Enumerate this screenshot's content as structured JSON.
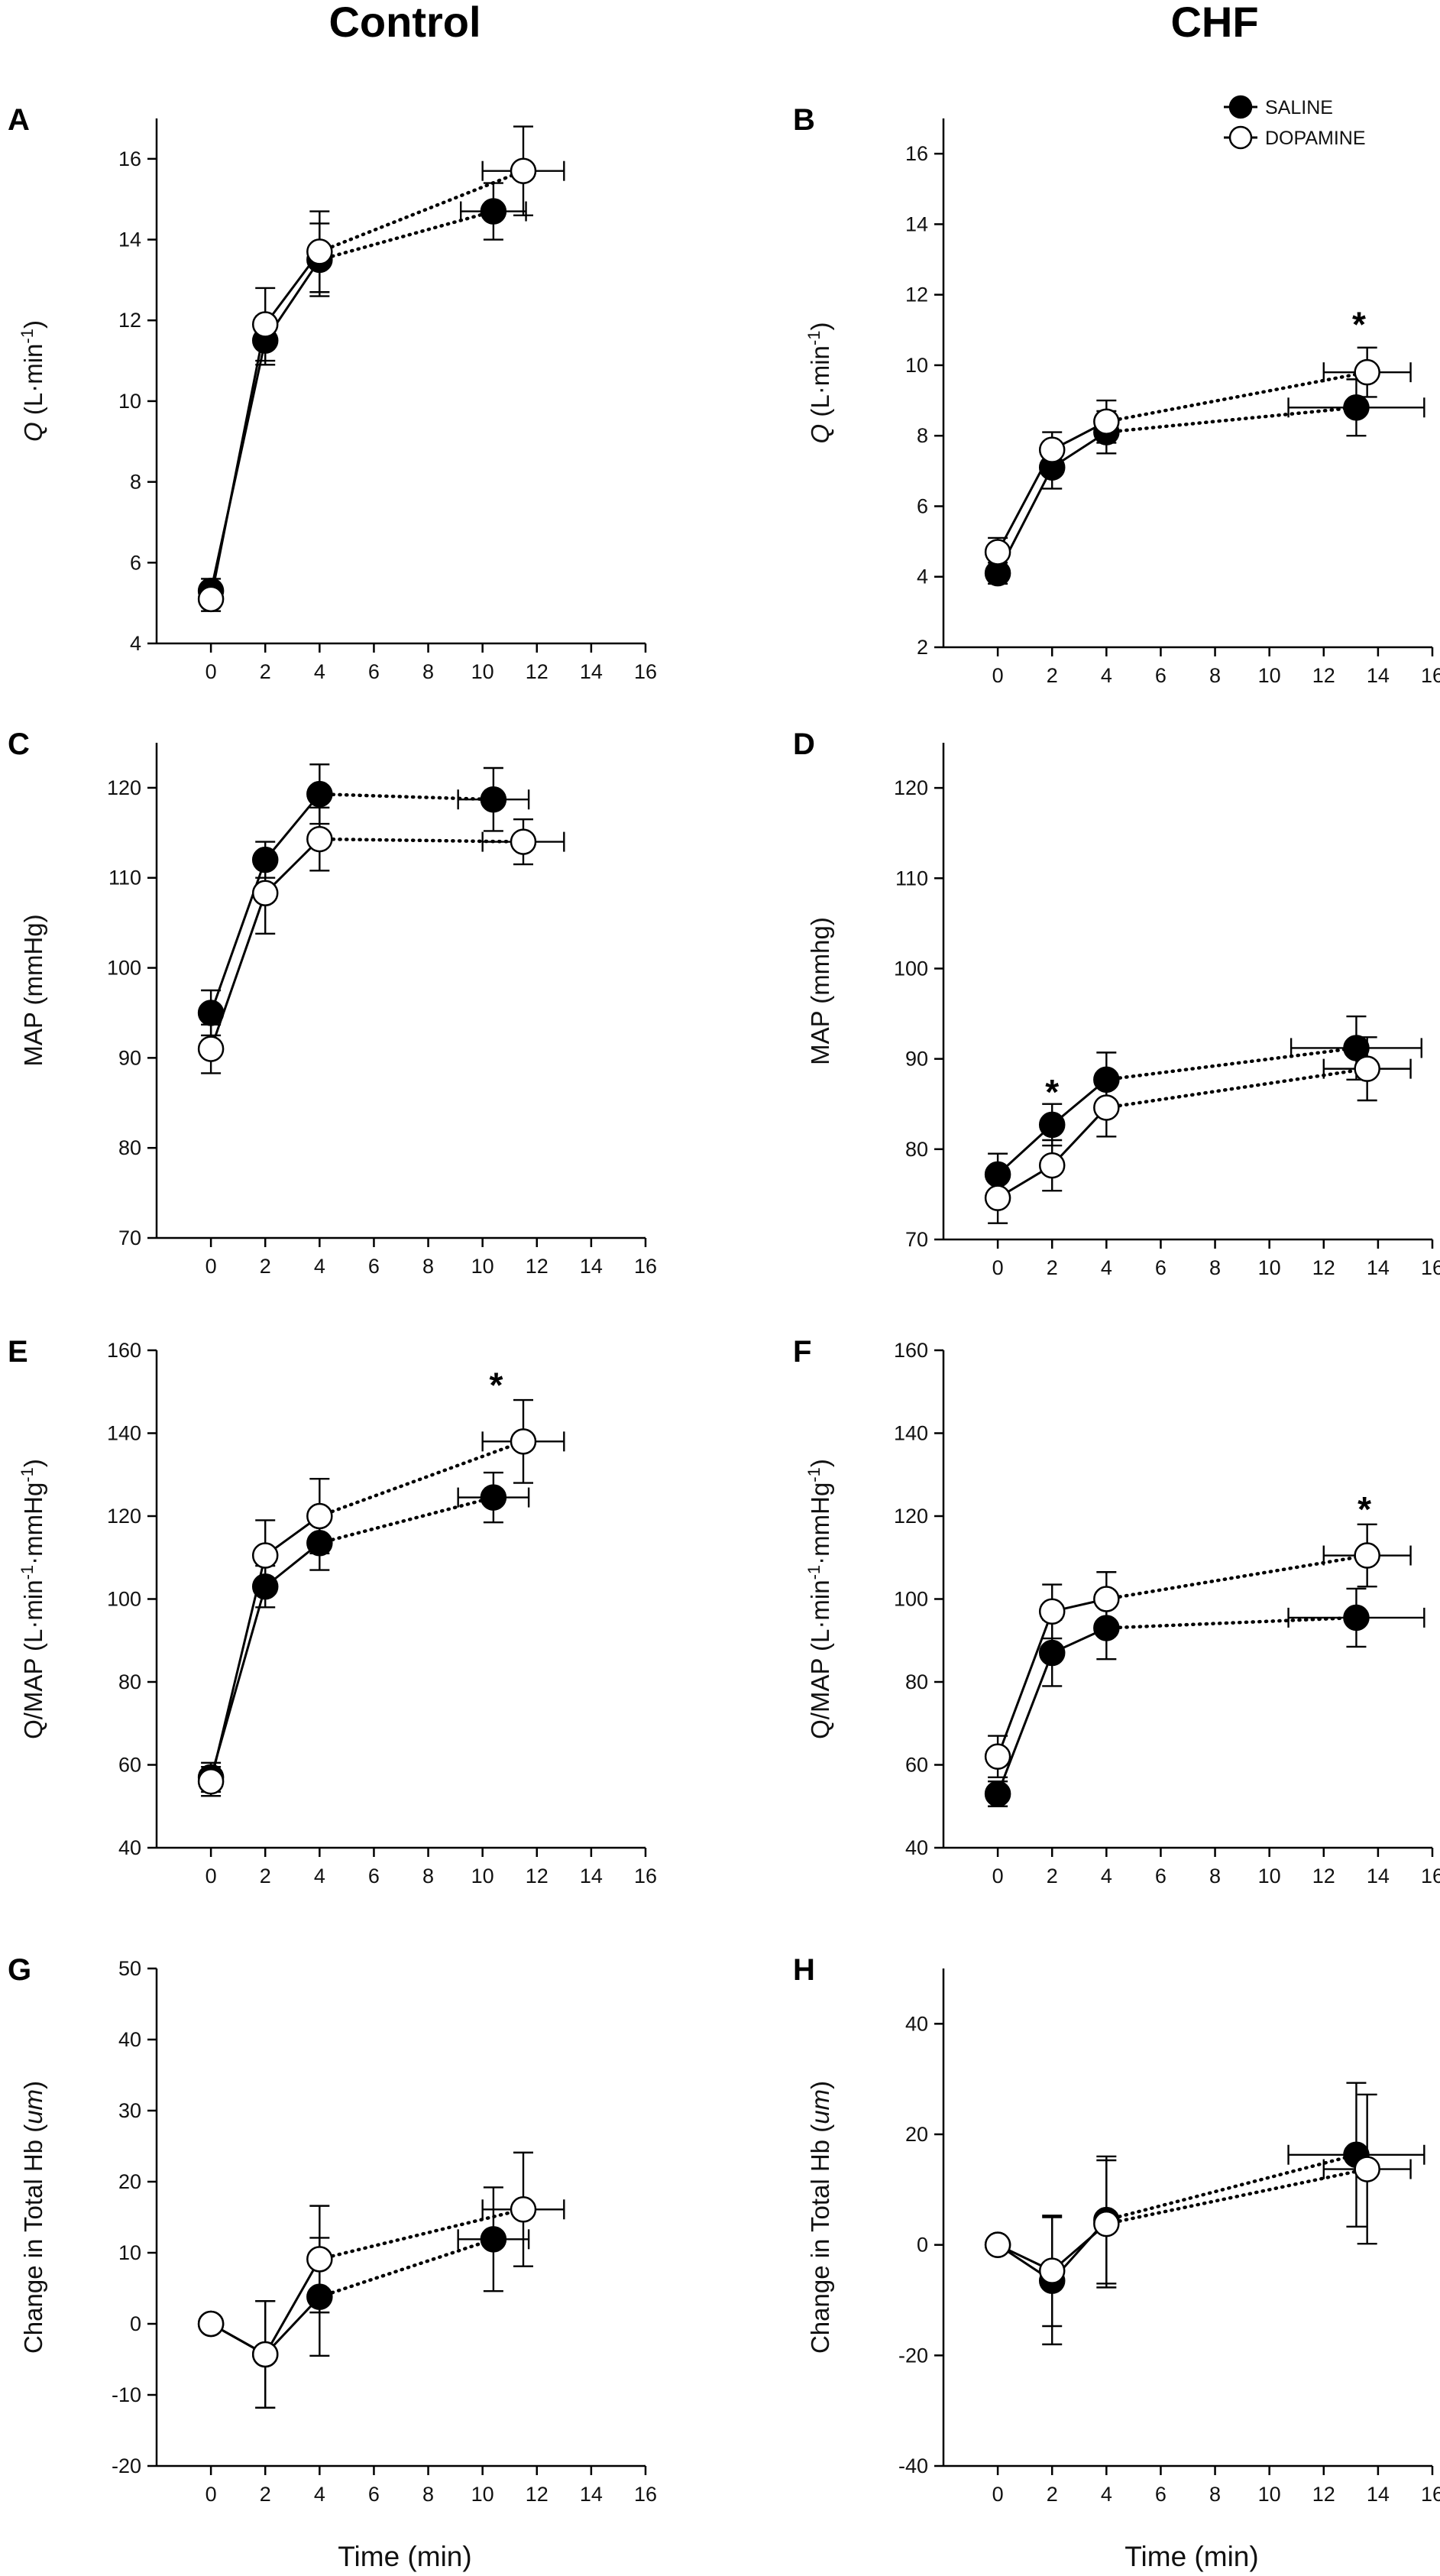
{
  "columns": [
    "Control",
    "CHF"
  ],
  "xlabel": "Time (min)",
  "legend": [
    {
      "name": "SALINE",
      "filled": true
    },
    {
      "name": "DOPAMINE",
      "filled": false
    }
  ],
  "colors": {
    "saline": "#000000",
    "dopamine": "#ffffff",
    "axis": "#000000"
  },
  "chart_data": [
    {
      "id": "A",
      "type": "line",
      "column": "Control",
      "ylabel_main": "Q",
      "ylabel_rest": " (L·min",
      "ylabel_sup": "-1",
      "ylabel_end": ")",
      "xlim": [
        -2,
        16
      ],
      "xticks": [
        0,
        2,
        4,
        6,
        8,
        10,
        12,
        14,
        16
      ],
      "ylim": [
        4,
        17
      ],
      "yticks": [
        4,
        6,
        8,
        10,
        12,
        14,
        16
      ],
      "series": [
        {
          "name": "SALINE",
          "x": [
            0,
            2,
            4,
            10.4
          ],
          "y": [
            5.3,
            11.5,
            13.5,
            14.7
          ],
          "yerr": [
            0.3,
            0.6,
            0.9,
            0.7
          ],
          "xerr_last": 1.2
        },
        {
          "name": "DOPAMINE",
          "x": [
            0,
            2,
            4,
            11.5
          ],
          "y": [
            5.1,
            11.9,
            13.7,
            15.7
          ],
          "yerr": [
            0.3,
            0.9,
            1.0,
            1.1
          ],
          "xerr_last": 1.5
        }
      ],
      "annotations": []
    },
    {
      "id": "B",
      "type": "line",
      "column": "CHF",
      "ylabel_main": "Q",
      "ylabel_rest": " (L·min",
      "ylabel_sup": "-1",
      "ylabel_end": ")",
      "xlim": [
        -2,
        16
      ],
      "xticks": [
        0,
        2,
        4,
        6,
        8,
        10,
        12,
        14,
        16
      ],
      "ylim": [
        2,
        17
      ],
      "yticks": [
        2,
        4,
        6,
        8,
        10,
        12,
        14,
        16
      ],
      "series": [
        {
          "name": "SALINE",
          "x": [
            0,
            2,
            4,
            13.2
          ],
          "y": [
            4.1,
            7.1,
            8.1,
            8.8
          ],
          "yerr": [
            0.3,
            0.6,
            0.6,
            0.8
          ],
          "xerr_last": 2.5
        },
        {
          "name": "DOPAMINE",
          "x": [
            0,
            2,
            4,
            13.6
          ],
          "y": [
            4.7,
            7.6,
            8.4,
            9.8
          ],
          "yerr": [
            0.4,
            0.5,
            0.6,
            0.7
          ],
          "xerr_last": 1.6
        }
      ],
      "annotations": [
        {
          "text": "*",
          "x": 13.3,
          "y": 11.2
        }
      ]
    },
    {
      "id": "C",
      "type": "line",
      "column": "Control",
      "ylabel_main": "MAP (mmHg)",
      "ylabel_rest": "",
      "ylabel_sup": "",
      "ylabel_end": "",
      "xlim": [
        -2,
        16
      ],
      "xticks": [
        0,
        2,
        4,
        6,
        8,
        10,
        12,
        14,
        16
      ],
      "ylim": [
        70,
        125
      ],
      "yticks": [
        70,
        80,
        90,
        100,
        110,
        120
      ],
      "series": [
        {
          "name": "SALINE",
          "x": [
            0,
            2,
            4,
            10.4
          ],
          "y": [
            95,
            112,
            119.3,
            118.7
          ],
          "yerr": [
            2.5,
            2.0,
            3.3,
            3.5
          ],
          "xerr_last": 1.3
        },
        {
          "name": "DOPAMINE",
          "x": [
            0,
            2,
            4,
            11.5
          ],
          "y": [
            91,
            108.3,
            114.3,
            114
          ],
          "yerr": [
            2.7,
            4.5,
            3.5,
            2.5
          ],
          "xerr_last": 1.5
        }
      ],
      "annotations": []
    },
    {
      "id": "D",
      "type": "line",
      "column": "CHF",
      "ylabel_main": "MAP (mmhg)",
      "ylabel_rest": "",
      "ylabel_sup": "",
      "ylabel_end": "",
      "xlim": [
        -2,
        16
      ],
      "xticks": [
        0,
        2,
        4,
        6,
        8,
        10,
        12,
        14,
        16
      ],
      "ylim": [
        70,
        125
      ],
      "yticks": [
        70,
        80,
        90,
        100,
        110,
        120
      ],
      "series": [
        {
          "name": "SALINE",
          "x": [
            0,
            2,
            4,
            13.2
          ],
          "y": [
            77.2,
            82.7,
            87.7,
            91.2
          ],
          "yerr": [
            2.3,
            2.3,
            3.0,
            3.5
          ],
          "xerr_last": 2.4
        },
        {
          "name": "DOPAMINE",
          "x": [
            0,
            2,
            4,
            13.6
          ],
          "y": [
            74.6,
            78.2,
            84.6,
            88.9
          ],
          "yerr": [
            2.8,
            2.8,
            3.2,
            3.5
          ],
          "xerr_last": 1.6
        }
      ],
      "annotations": [
        {
          "text": "*",
          "x": 2,
          "y": 86.5
        }
      ]
    },
    {
      "id": "E",
      "type": "line",
      "column": "Control",
      "ylabel_main": "Q/MAP (L·min",
      "ylabel_rest": "",
      "ylabel_sup": "-1",
      "ylabel_end": "·mmHg",
      "ylabel_sup2": "-1",
      "ylabel_end2": ")",
      "xlim": [
        -2,
        16
      ],
      "xticks": [
        0,
        2,
        4,
        6,
        8,
        10,
        12,
        14,
        16
      ],
      "ylim": [
        40,
        160
      ],
      "yticks": [
        40,
        60,
        80,
        100,
        120,
        140,
        160
      ],
      "series": [
        {
          "name": "SALINE",
          "x": [
            0,
            2,
            4,
            10.4
          ],
          "y": [
            57,
            103,
            113.5,
            124.5
          ],
          "yerr": [
            3.5,
            5.0,
            6.5,
            6.0
          ],
          "xerr_last": 1.3
        },
        {
          "name": "DOPAMINE",
          "x": [
            0,
            2,
            4,
            11.5
          ],
          "y": [
            56,
            110.5,
            120,
            138
          ],
          "yerr": [
            3.5,
            8.5,
            9.0,
            10.0
          ],
          "xerr_last": 1.5
        }
      ],
      "annotations": [
        {
          "text": "*",
          "x": 10.5,
          "y": 152
        }
      ]
    },
    {
      "id": "F",
      "type": "line",
      "column": "CHF",
      "ylabel_main": "Q/MAP (L·min",
      "ylabel_rest": "",
      "ylabel_sup": "-1",
      "ylabel_end": "·mmHg",
      "ylabel_sup2": "-1",
      "ylabel_end2": ")",
      "xlim": [
        -2,
        16
      ],
      "xticks": [
        0,
        2,
        4,
        6,
        8,
        10,
        12,
        14,
        16
      ],
      "ylim": [
        40,
        160
      ],
      "yticks": [
        40,
        60,
        80,
        100,
        120,
        140,
        160
      ],
      "series": [
        {
          "name": "SALINE",
          "x": [
            0,
            2,
            4,
            13.2
          ],
          "y": [
            53,
            87,
            93,
            95.5
          ],
          "yerr": [
            3.0,
            8.0,
            7.5,
            7.0
          ],
          "xerr_last": 2.5
        },
        {
          "name": "DOPAMINE",
          "x": [
            0,
            2,
            4,
            13.6
          ],
          "y": [
            62,
            97,
            100,
            110.5
          ],
          "yerr": [
            5.0,
            6.5,
            6.5,
            7.5
          ],
          "xerr_last": 1.6
        }
      ],
      "annotations": [
        {
          "text": "*",
          "x": 13.5,
          "y": 122
        }
      ]
    },
    {
      "id": "G",
      "type": "line",
      "column": "Control",
      "ylabel_main": "Change in Total Hb (",
      "ylabel_italic": "um",
      "ylabel_rest": ")",
      "ylabel_sup": "",
      "ylabel_end": "",
      "xlim": [
        -2,
        16
      ],
      "xticks": [
        0,
        2,
        4,
        6,
        8,
        10,
        12,
        14,
        16
      ],
      "ylim": [
        -20,
        50
      ],
      "yticks": [
        -20,
        -10,
        0,
        10,
        20,
        30,
        40,
        50
      ],
      "series": [
        {
          "name": "SALINE",
          "x": [
            0,
            2,
            4,
            10.4
          ],
          "y": [
            0,
            -4.3,
            3.8,
            11.9
          ],
          "yerr": [
            0,
            7.5,
            8.3,
            7.3
          ],
          "xerr_last": 1.3
        },
        {
          "name": "DOPAMINE",
          "x": [
            0,
            2,
            4,
            11.5
          ],
          "y": [
            0,
            -4.3,
            9.1,
            16.1
          ],
          "yerr": [
            0,
            7.5,
            7.5,
            8.0
          ],
          "xerr_last": 1.5
        }
      ],
      "annotations": []
    },
    {
      "id": "H",
      "type": "line",
      "column": "CHF",
      "ylabel_main": "Change in Total Hb (",
      "ylabel_italic": "um",
      "ylabel_rest": ")",
      "ylabel_sup": "",
      "ylabel_end": "",
      "xlim": [
        -2,
        16
      ],
      "xticks": [
        0,
        2,
        4,
        6,
        8,
        10,
        12,
        14,
        16
      ],
      "ylim": [
        -40,
        50
      ],
      "yticks": [
        -40,
        -20,
        0,
        20,
        40
      ],
      "series": [
        {
          "name": "SALINE",
          "x": [
            0,
            2,
            4,
            13.2
          ],
          "y": [
            0,
            -6.5,
            4.5,
            16.3
          ],
          "yerr": [
            0,
            11.5,
            11.5,
            13.0
          ],
          "xerr_last": 2.5
        },
        {
          "name": "DOPAMINE",
          "x": [
            0,
            2,
            4,
            13.6
          ],
          "y": [
            0,
            -4.7,
            3.8,
            13.7
          ],
          "yerr": [
            0,
            10.0,
            11.5,
            13.5
          ],
          "xerr_last": 1.6
        }
      ],
      "annotations": []
    }
  ]
}
